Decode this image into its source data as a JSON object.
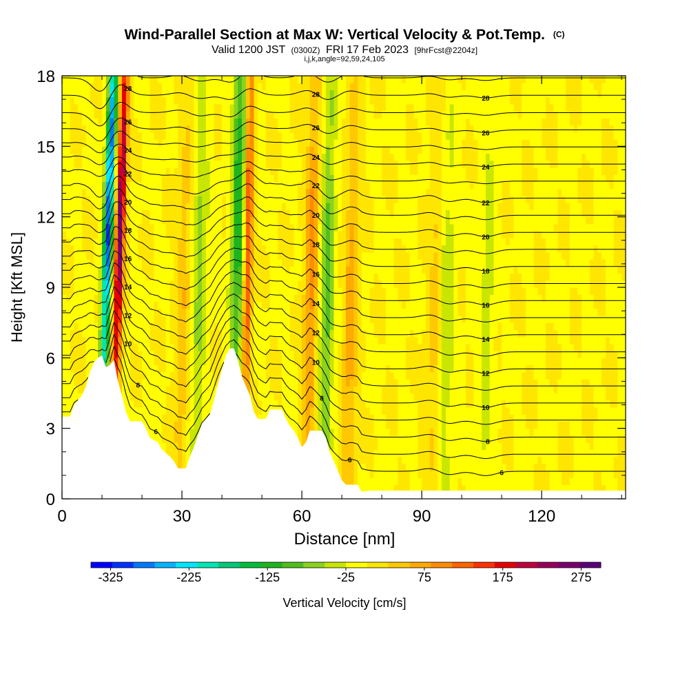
{
  "chart_data": {
    "type": "heatmap",
    "title": "Wind-Parallel Section at Max W: Vertical Velocity & Pot.Temp.",
    "title_units": "(C)",
    "subtitle_main": "Valid 1200 JST",
    "subtitle_utc": "(0300Z)",
    "subtitle_date": "FRI 17 Feb 2023",
    "subtitle_fcst": "[9hrFcst@2204z]",
    "indices_line": "i,j,k,angle=92,59,24,105",
    "xlabel": "Distance [nm]",
    "ylabel": "Height [Kft MSL]",
    "xlim": [
      0,
      141
    ],
    "ylim": [
      0,
      18
    ],
    "x_ticks": [
      "0",
      "30",
      "60",
      "90",
      "120"
    ],
    "y_ticks": [
      "0",
      "3",
      "6",
      "9",
      "12",
      "15",
      "18"
    ],
    "colorbar": {
      "label": "Vertical Velocity [cm/s]",
      "range": [
        -350,
        300
      ],
      "ticks": [
        "-325",
        "-225",
        "-125",
        "-25",
        "75",
        "175",
        "275"
      ],
      "colors": [
        "#0000ff",
        "#0032ff",
        "#0078ff",
        "#00b4ff",
        "#00e6ff",
        "#00e6b4",
        "#00c878",
        "#00be3c",
        "#1eb41e",
        "#50be1e",
        "#8cd21e",
        "#c8e600",
        "#ffff00",
        "#ffe600",
        "#ffc800",
        "#ffaa00",
        "#ff8c00",
        "#ff6400",
        "#ff3200",
        "#e60000",
        "#be003c",
        "#96005a",
        "#78006e",
        "#5a0078"
      ]
    },
    "series": [
      {
        "name": "Vertical Velocity",
        "features": [
          {
            "label": "updraft",
            "x": 13.5,
            "peak": 260
          },
          {
            "label": "downdraft",
            "x": 10.5,
            "peak": -300
          },
          {
            "label": "updraft",
            "x": 46,
            "peak": 160
          },
          {
            "label": "downdraft",
            "x": 43.5,
            "peak": -130
          },
          {
            "label": "updraft",
            "x": 72,
            "peak": 70
          },
          {
            "label": "updraft",
            "x": 62,
            "peak": 90
          },
          {
            "label": "downdraft",
            "x": 66,
            "peak": -90
          },
          {
            "label": "updraft",
            "x": 30,
            "peak": 50
          },
          {
            "label": "downdraft",
            "x": 34,
            "peak": -60
          },
          {
            "label": "downdraft",
            "x": 96,
            "peak": -45
          },
          {
            "label": "downdraft",
            "x": 106,
            "peak": -40
          },
          {
            "label": "updraft",
            "x": 93,
            "peak": 40
          }
        ]
      },
      {
        "name": "Pot.Temp.",
        "contour_labels": [
          "6",
          "8",
          "10",
          "12",
          "14",
          "16",
          "18",
          "20",
          "22",
          "24",
          "26",
          "28"
        ]
      }
    ],
    "terrain": [
      [
        0,
        3.5
      ],
      [
        2,
        3.5
      ],
      [
        3,
        4.0
      ],
      [
        5,
        4.4
      ],
      [
        6,
        4.8
      ],
      [
        7,
        5.4
      ],
      [
        8,
        5.8
      ],
      [
        9,
        6.0
      ],
      [
        10,
        6.1
      ],
      [
        11,
        5.6
      ],
      [
        12,
        5.7
      ],
      [
        13,
        5.9
      ],
      [
        14,
        5.0
      ],
      [
        15,
        4.4
      ],
      [
        16,
        3.7
      ],
      [
        17,
        3.3
      ],
      [
        20,
        3.3
      ],
      [
        21,
        3.0
      ],
      [
        22,
        2.6
      ],
      [
        24,
        2.4
      ],
      [
        25,
        2.1
      ],
      [
        27,
        1.8
      ],
      [
        28,
        1.6
      ],
      [
        29,
        1.3
      ],
      [
        31,
        1.3
      ],
      [
        32,
        1.8
      ],
      [
        33,
        2.2
      ],
      [
        34,
        2.7
      ],
      [
        35,
        3.2
      ],
      [
        37,
        3.6
      ],
      [
        38,
        4.2
      ],
      [
        39,
        4.9
      ],
      [
        40,
        5.5
      ],
      [
        41,
        6.1
      ],
      [
        42,
        6.4
      ],
      [
        43,
        6.4
      ],
      [
        44,
        5.9
      ],
      [
        45,
        5.2
      ],
      [
        46,
        4.8
      ],
      [
        47,
        4.4
      ],
      [
        48,
        3.7
      ],
      [
        49,
        3.4
      ],
      [
        51,
        3.4
      ],
      [
        52,
        3.8
      ],
      [
        55,
        3.8
      ],
      [
        56,
        3.4
      ],
      [
        57,
        3.1
      ],
      [
        58,
        2.9
      ],
      [
        59,
        2.6
      ],
      [
        60,
        2.2
      ],
      [
        61,
        2.4
      ],
      [
        62,
        2.9
      ],
      [
        65,
        2.9
      ],
      [
        66,
        2.6
      ],
      [
        67,
        2.0
      ],
      [
        68,
        1.6
      ],
      [
        69,
        1.2
      ],
      [
        70,
        0.8
      ],
      [
        71,
        0.6
      ],
      [
        74,
        0.6
      ],
      [
        75,
        0.3
      ],
      [
        77,
        0.35
      ],
      [
        141,
        0.35
      ]
    ]
  }
}
